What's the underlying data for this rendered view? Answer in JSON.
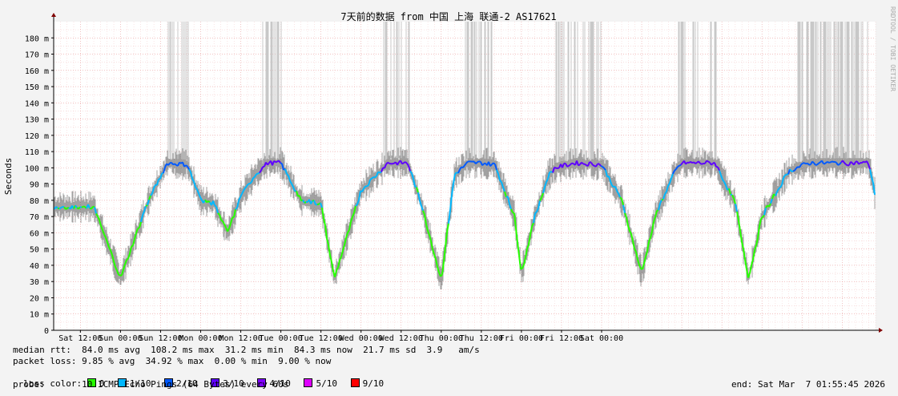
{
  "chart_data": {
    "type": "area",
    "title": "7天前的数据 from 中国 上海 联通-2 AS17621",
    "ylabel": "Seconds",
    "xlabel": "",
    "ylim": [
      0,
      190
    ],
    "y_unit_suffix": "m",
    "yticks": [
      "0",
      "10 m",
      "20 m",
      "30 m",
      "40 m",
      "50 m",
      "60 m",
      "70 m",
      "80 m",
      "90 m",
      "100 m",
      "110 m",
      "120 m",
      "130 m",
      "140 m",
      "150 m",
      "160 m",
      "170 m",
      "180 m"
    ],
    "xticks": [
      "Sat 12:00",
      "Sun 00:00",
      "Sun 12:00",
      "Mon 00:00",
      "Mon 12:00",
      "Tue 00:00",
      "Tue 12:00",
      "Wed 00:00",
      "Wed 12:00",
      "Thu 00:00",
      "Thu 12:00",
      "Fri 00:00",
      "Fri 12:00",
      "Sat 00:00"
    ],
    "x_hours": [
      -8,
      0,
      8,
      14,
      20,
      24,
      28,
      32,
      36,
      40,
      44,
      48,
      54,
      60,
      64,
      72,
      80,
      86,
      90,
      96,
      100,
      104,
      108,
      112,
      118,
      120,
      124,
      128,
      130,
      136,
      144,
      150,
      156,
      160,
      166,
      168,
      172,
      178,
      184,
      188,
      192,
      200,
      206,
      210,
      216,
      224,
      226
    ],
    "median_rtt_ms": [
      76,
      32,
      78,
      103,
      102,
      80,
      78,
      60,
      82,
      95,
      103,
      103,
      80,
      78,
      32,
      86,
      103,
      103,
      78,
      31,
      96,
      103,
      103,
      102,
      70,
      35,
      70,
      95,
      100,
      103,
      102,
      80,
      35,
      70,
      98,
      103,
      103,
      103,
      78,
      32,
      70,
      98,
      103,
      103,
      103,
      103,
      82
    ],
    "series": [
      {
        "name": "median rtt",
        "unit": "ms"
      },
      {
        "name": "packet loss",
        "unit": "%"
      }
    ],
    "grid": true
  },
  "colors": {
    "background": "#f3f3f3",
    "canvas": "#ffffff",
    "grid": "#e89090",
    "smoke": "#c8c8c8",
    "smoke_dark": "#555555",
    "loss_0": "#26ff00",
    "loss_1": "#00b8ff",
    "loss_2": "#0059ff",
    "loss_3": "#5e00ff",
    "loss_4": "#7e00ff",
    "loss_5": "#dd00ff",
    "loss_9": "#ff0000"
  },
  "legend": {
    "median_rtt": "median rtt:  84.0 ms avg  108.2 ms max  31.2 ms min  84.3 ms now  21.7 ms sd  3.9   am/s",
    "packet_loss": "packet loss: 9.85 % avg  34.92 % max  0.00 % min  9.00 % now",
    "loss_color_label": "loss color:",
    "loss_items": [
      {
        "label": "0",
        "color": "#26ff00"
      },
      {
        "label": "1/10",
        "color": "#00b8ff"
      },
      {
        "label": "2/10",
        "color": "#0059ff"
      },
      {
        "label": "3/10",
        "color": "#5e00ff"
      },
      {
        "label": "4/10",
        "color": "#7e00ff"
      },
      {
        "label": "5/10",
        "color": "#dd00ff"
      },
      {
        "label": "9/10",
        "color": "#ff0000"
      }
    ],
    "probe": "probe:       10 ICMP Echo Pings (64 Bytes) every 60s",
    "end": "end: Sat Mar  7 01:55:45 2026"
  },
  "watermark": "RRDTOOL / TOBI OETIKER"
}
